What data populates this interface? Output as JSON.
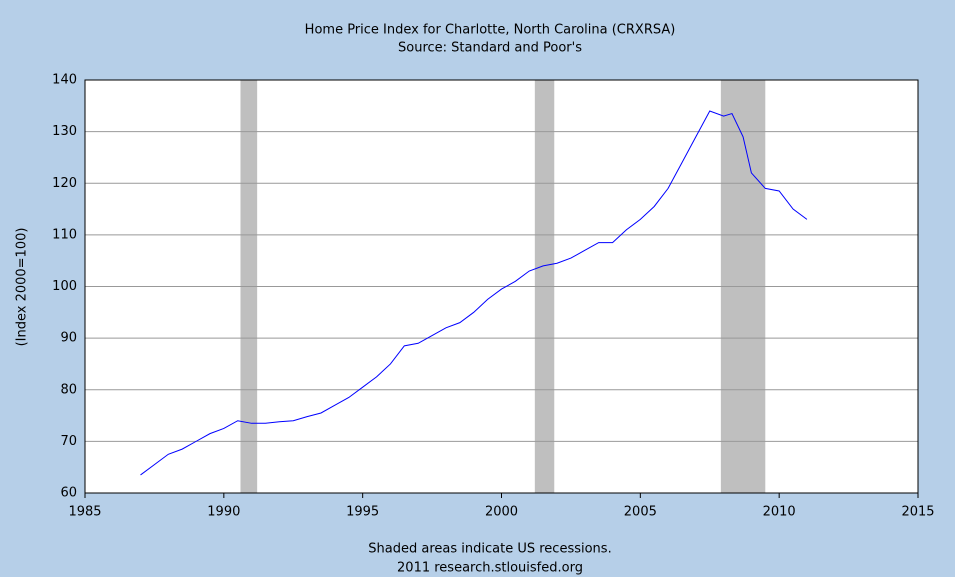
{
  "chart_data": {
    "type": "line",
    "title": "Home Price Index for Charlotte, North Carolina (CRXRSA)",
    "subtitle": "Source: Standard and Poor's",
    "y_label": "(Index 2000=100)",
    "footnote": "Shaded areas indicate US recessions.",
    "credit": "2011 research.stlouisfed.org",
    "color": "#0000ff",
    "recession_color": "#bfbfbf",
    "grid": true,
    "xlim": [
      1985,
      2015
    ],
    "xticks": [
      1985,
      1990,
      1995,
      2000,
      2005,
      2010,
      2015
    ],
    "ylim": [
      60,
      140
    ],
    "yticks": [
      60,
      70,
      80,
      90,
      100,
      110,
      120,
      130,
      140
    ],
    "recessions": [
      [
        1990.6,
        1991.2
      ],
      [
        2001.2,
        2001.9
      ],
      [
        2007.9,
        2009.5
      ]
    ],
    "x": [
      1987.0,
      1987.5,
      1988.0,
      1988.5,
      1989.0,
      1989.5,
      1990.0,
      1990.5,
      1991.0,
      1991.5,
      1992.0,
      1992.5,
      1993.0,
      1993.5,
      1994.0,
      1994.5,
      1995.0,
      1995.5,
      1996.0,
      1996.5,
      1997.0,
      1997.5,
      1998.0,
      1998.5,
      1999.0,
      1999.5,
      2000.0,
      2000.5,
      2001.0,
      2001.5,
      2002.0,
      2002.5,
      2003.0,
      2003.5,
      2004.0,
      2004.5,
      2005.0,
      2005.5,
      2006.0,
      2006.5,
      2007.0,
      2007.5,
      2008.0,
      2008.3,
      2008.7,
      2009.0,
      2009.5,
      2010.0,
      2010.5,
      2011.0
    ],
    "values": [
      63.5,
      65.5,
      67.5,
      68.5,
      70,
      71.5,
      72.5,
      74,
      73.5,
      73.5,
      73.8,
      74,
      74.8,
      75.5,
      77,
      78.5,
      80.5,
      82.5,
      85,
      88.5,
      89,
      90.5,
      92,
      93,
      95,
      97.5,
      99.5,
      101,
      103,
      104,
      104.5,
      105.5,
      107,
      108.5,
      108.5,
      111,
      113,
      115.5,
      119,
      124,
      129,
      134,
      133,
      133.5,
      129,
      122,
      119,
      118.5,
      115,
      113
    ]
  }
}
